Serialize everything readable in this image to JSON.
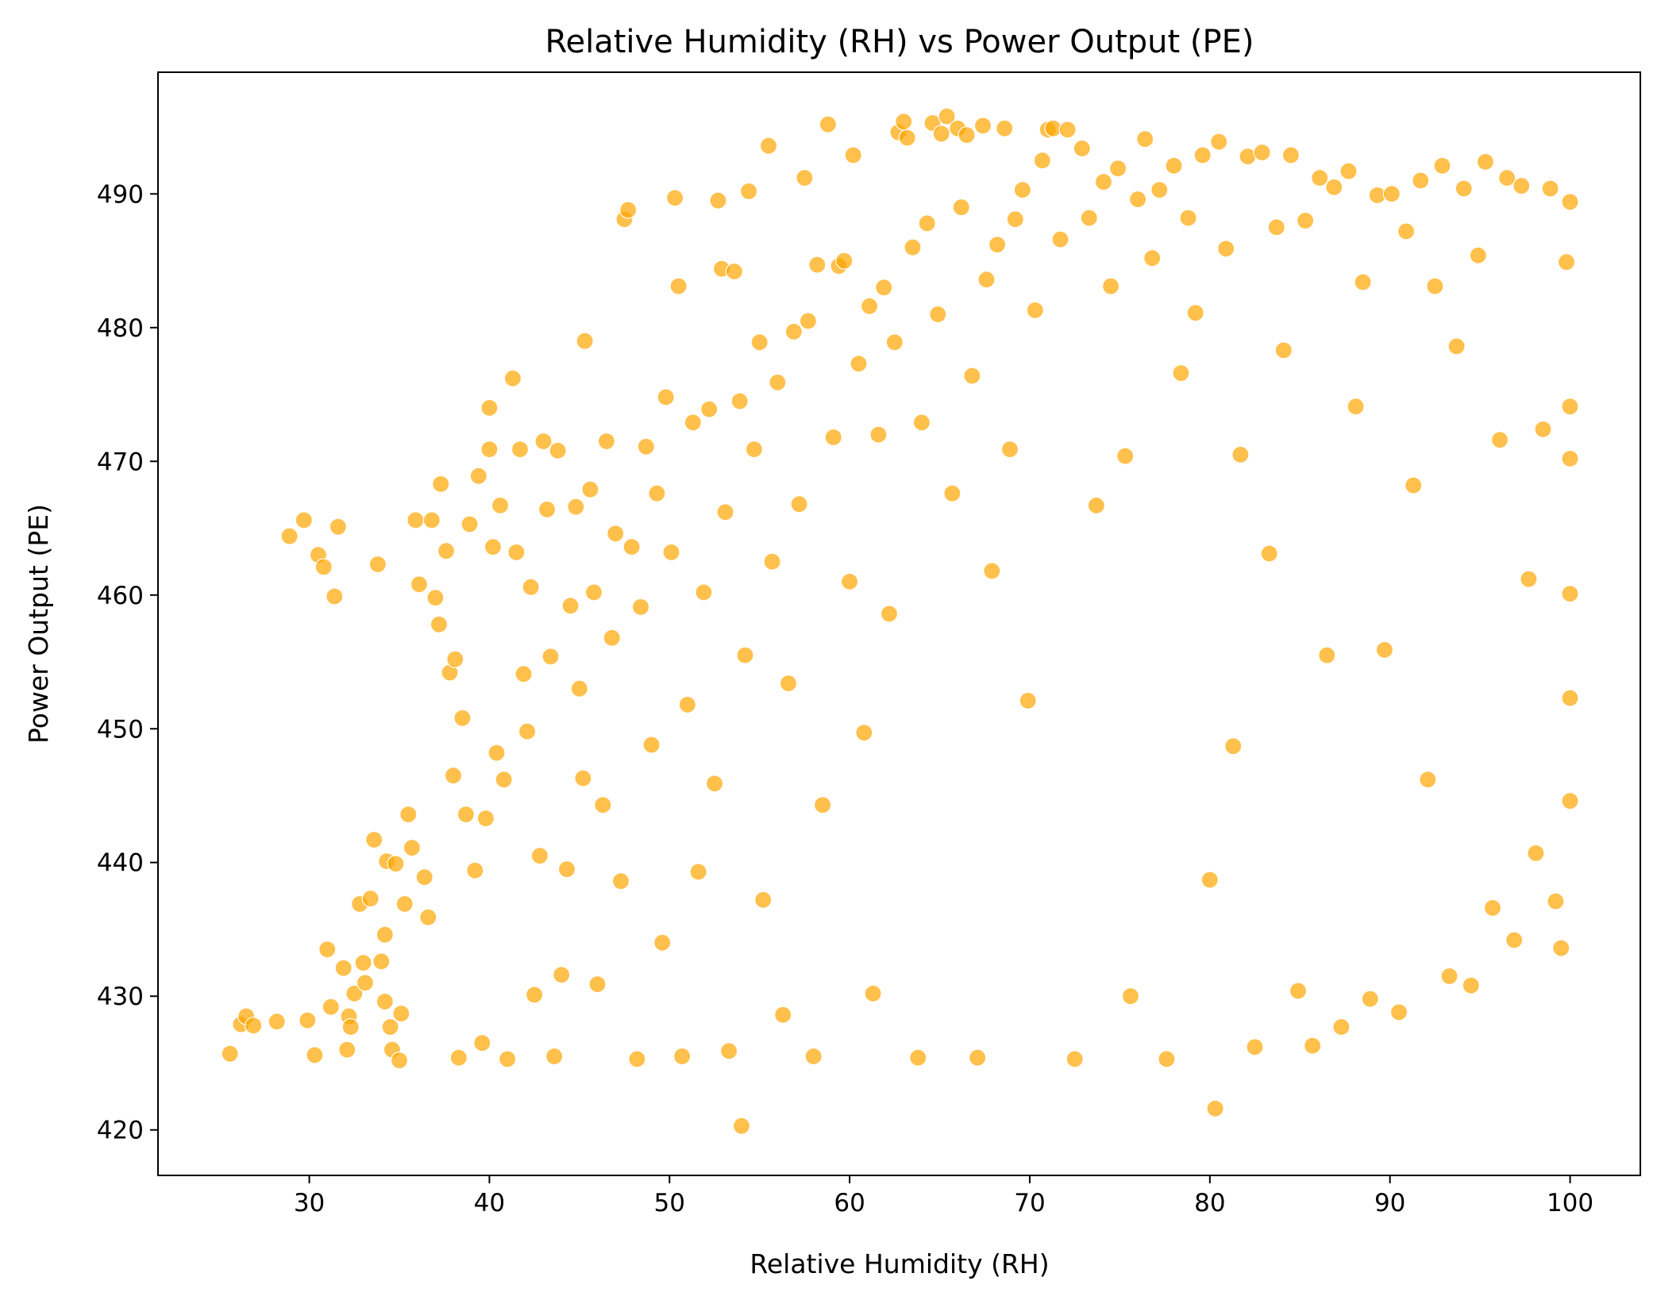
{
  "chart_data": {
    "type": "scatter",
    "title": "Relative Humidity (RH) vs Power Output (PE)",
    "xlabel": "Relative Humidity (RH)",
    "ylabel": "Power Output (PE)",
    "xlim": [
      21.6,
      103.9
    ],
    "ylim": [
      416.6,
      499.1
    ],
    "xticks": [
      30,
      40,
      50,
      60,
      70,
      80,
      90,
      100
    ],
    "yticks": [
      420,
      430,
      440,
      450,
      460,
      470,
      480,
      490
    ],
    "grid": false,
    "legend": "none",
    "marker_color": "#FFA500",
    "marker_alpha": 0.7,
    "marker_edge_color": "#ffffff",
    "series": [
      {
        "values_description": "",
        "points": [
          [
            25.6,
            425.7
          ],
          [
            26.2,
            427.9
          ],
          [
            26.5,
            428.5
          ],
          [
            26.9,
            427.8
          ],
          [
            28.2,
            428.1
          ],
          [
            28.9,
            464.4
          ],
          [
            29.7,
            465.6
          ],
          [
            29.9,
            428.2
          ],
          [
            30.3,
            425.6
          ],
          [
            30.5,
            463.0
          ],
          [
            30.8,
            462.1
          ],
          [
            31.0,
            433.5
          ],
          [
            31.2,
            429.2
          ],
          [
            31.4,
            459.9
          ],
          [
            31.6,
            465.1
          ],
          [
            31.9,
            432.1
          ],
          [
            32.1,
            426.0
          ],
          [
            32.2,
            428.5
          ],
          [
            32.3,
            427.7
          ],
          [
            32.5,
            430.2
          ],
          [
            32.8,
            436.9
          ],
          [
            33.0,
            432.5
          ],
          [
            33.1,
            431.0
          ],
          [
            33.4,
            437.3
          ],
          [
            33.6,
            441.7
          ],
          [
            33.8,
            462.3
          ],
          [
            34.0,
            432.6
          ],
          [
            34.2,
            434.6
          ],
          [
            34.2,
            429.6
          ],
          [
            34.3,
            440.1
          ],
          [
            34.5,
            427.7
          ],
          [
            34.6,
            426.0
          ],
          [
            34.8,
            439.9
          ],
          [
            35.0,
            425.2
          ],
          [
            35.1,
            428.7
          ],
          [
            35.3,
            436.9
          ],
          [
            35.5,
            443.6
          ],
          [
            35.7,
            441.1
          ],
          [
            35.9,
            465.6
          ],
          [
            36.1,
            460.8
          ],
          [
            36.4,
            438.9
          ],
          [
            36.6,
            435.9
          ],
          [
            36.8,
            465.6
          ],
          [
            37.0,
            459.8
          ],
          [
            37.2,
            457.8
          ],
          [
            37.3,
            468.3
          ],
          [
            37.6,
            463.3
          ],
          [
            37.8,
            454.2
          ],
          [
            38.0,
            446.5
          ],
          [
            38.1,
            455.2
          ],
          [
            38.3,
            425.4
          ],
          [
            38.5,
            450.8
          ],
          [
            38.7,
            443.6
          ],
          [
            38.9,
            465.3
          ],
          [
            39.2,
            439.4
          ],
          [
            39.4,
            468.9
          ],
          [
            39.6,
            426.5
          ],
          [
            39.8,
            443.3
          ],
          [
            40.0,
            474.0
          ],
          [
            40.0,
            470.9
          ],
          [
            40.2,
            463.6
          ],
          [
            40.4,
            448.2
          ],
          [
            40.6,
            466.7
          ],
          [
            40.8,
            446.2
          ],
          [
            41.0,
            425.3
          ],
          [
            41.3,
            476.2
          ],
          [
            41.5,
            463.2
          ],
          [
            41.7,
            470.9
          ],
          [
            41.9,
            454.1
          ],
          [
            42.1,
            449.8
          ],
          [
            42.3,
            460.6
          ],
          [
            42.5,
            430.1
          ],
          [
            42.8,
            440.5
          ],
          [
            43.0,
            471.5
          ],
          [
            43.2,
            466.4
          ],
          [
            43.4,
            455.4
          ],
          [
            43.6,
            425.5
          ],
          [
            43.8,
            470.8
          ],
          [
            44.0,
            431.6
          ],
          [
            44.3,
            439.5
          ],
          [
            44.5,
            459.2
          ],
          [
            44.8,
            466.6
          ],
          [
            45.0,
            453.0
          ],
          [
            45.2,
            446.3
          ],
          [
            45.3,
            479.0
          ],
          [
            45.6,
            467.9
          ],
          [
            45.8,
            460.2
          ],
          [
            46.0,
            430.9
          ],
          [
            46.3,
            444.3
          ],
          [
            46.5,
            471.5
          ],
          [
            46.8,
            456.8
          ],
          [
            47.0,
            464.6
          ],
          [
            47.3,
            438.6
          ],
          [
            47.5,
            488.1
          ],
          [
            47.7,
            488.8
          ],
          [
            47.9,
            463.6
          ],
          [
            48.2,
            425.3
          ],
          [
            48.4,
            459.1
          ],
          [
            48.7,
            471.1
          ],
          [
            49.0,
            448.8
          ],
          [
            49.3,
            467.6
          ],
          [
            49.6,
            434.0
          ],
          [
            49.8,
            474.8
          ],
          [
            50.1,
            463.2
          ],
          [
            50.3,
            489.7
          ],
          [
            50.5,
            483.1
          ],
          [
            50.7,
            425.5
          ],
          [
            51.0,
            451.8
          ],
          [
            51.3,
            472.9
          ],
          [
            51.6,
            439.3
          ],
          [
            51.9,
            460.2
          ],
          [
            52.2,
            473.9
          ],
          [
            52.5,
            445.9
          ],
          [
            52.7,
            489.5
          ],
          [
            52.9,
            484.4
          ],
          [
            53.1,
            466.2
          ],
          [
            53.3,
            425.9
          ],
          [
            53.6,
            484.2
          ],
          [
            53.9,
            474.5
          ],
          [
            54.0,
            420.3
          ],
          [
            54.2,
            455.5
          ],
          [
            54.4,
            490.2
          ],
          [
            54.7,
            470.9
          ],
          [
            55.0,
            478.9
          ],
          [
            55.2,
            437.2
          ],
          [
            55.5,
            493.6
          ],
          [
            55.7,
            462.5
          ],
          [
            56.0,
            475.9
          ],
          [
            56.3,
            428.6
          ],
          [
            56.6,
            453.4
          ],
          [
            56.9,
            479.7
          ],
          [
            57.2,
            466.8
          ],
          [
            57.5,
            491.2
          ],
          [
            57.7,
            480.5
          ],
          [
            58.0,
            425.5
          ],
          [
            58.2,
            484.7
          ],
          [
            58.5,
            444.3
          ],
          [
            58.8,
            495.2
          ],
          [
            59.1,
            471.8
          ],
          [
            59.4,
            484.6
          ],
          [
            59.7,
            485.0
          ],
          [
            60.0,
            461.0
          ],
          [
            60.2,
            492.9
          ],
          [
            60.5,
            477.3
          ],
          [
            60.8,
            449.7
          ],
          [
            61.1,
            481.6
          ],
          [
            61.3,
            430.2
          ],
          [
            61.6,
            472.0
          ],
          [
            61.9,
            483.0
          ],
          [
            62.2,
            458.6
          ],
          [
            62.5,
            478.9
          ],
          [
            62.7,
            494.6
          ],
          [
            63.0,
            495.4
          ],
          [
            63.2,
            494.2
          ],
          [
            63.5,
            486.0
          ],
          [
            63.8,
            425.4
          ],
          [
            64.0,
            472.9
          ],
          [
            64.3,
            487.8
          ],
          [
            64.6,
            495.3
          ],
          [
            64.9,
            481.0
          ],
          [
            65.1,
            494.5
          ],
          [
            65.4,
            495.8
          ],
          [
            65.7,
            467.6
          ],
          [
            66.0,
            494.9
          ],
          [
            66.2,
            489.0
          ],
          [
            66.5,
            494.4
          ],
          [
            66.8,
            476.4
          ],
          [
            67.1,
            425.4
          ],
          [
            67.4,
            495.1
          ],
          [
            67.6,
            483.6
          ],
          [
            67.9,
            461.8
          ],
          [
            68.2,
            486.2
          ],
          [
            68.6,
            494.9
          ],
          [
            68.9,
            470.9
          ],
          [
            69.2,
            488.1
          ],
          [
            69.6,
            490.3
          ],
          [
            69.9,
            452.1
          ],
          [
            70.3,
            481.3
          ],
          [
            70.7,
            492.5
          ],
          [
            71.0,
            494.8
          ],
          [
            71.3,
            494.9
          ],
          [
            71.7,
            486.6
          ],
          [
            72.1,
            494.8
          ],
          [
            72.5,
            425.3
          ],
          [
            72.9,
            493.4
          ],
          [
            73.3,
            488.2
          ],
          [
            73.7,
            466.7
          ],
          [
            74.1,
            490.9
          ],
          [
            74.5,
            483.1
          ],
          [
            74.9,
            491.9
          ],
          [
            75.3,
            470.4
          ],
          [
            75.6,
            430.0
          ],
          [
            76.0,
            489.6
          ],
          [
            76.4,
            494.1
          ],
          [
            76.8,
            485.2
          ],
          [
            77.2,
            490.3
          ],
          [
            77.6,
            425.3
          ],
          [
            78.0,
            492.1
          ],
          [
            78.4,
            476.6
          ],
          [
            78.8,
            488.2
          ],
          [
            79.2,
            481.1
          ],
          [
            79.6,
            492.9
          ],
          [
            80.0,
            438.7
          ],
          [
            80.3,
            421.6
          ],
          [
            80.5,
            493.9
          ],
          [
            80.9,
            485.9
          ],
          [
            81.3,
            448.7
          ],
          [
            81.7,
            470.5
          ],
          [
            82.1,
            492.8
          ],
          [
            82.5,
            426.2
          ],
          [
            82.9,
            493.1
          ],
          [
            83.3,
            463.1
          ],
          [
            83.7,
            487.5
          ],
          [
            84.1,
            478.3
          ],
          [
            84.5,
            492.9
          ],
          [
            84.9,
            430.4
          ],
          [
            85.3,
            488.0
          ],
          [
            85.7,
            426.3
          ],
          [
            86.1,
            491.2
          ],
          [
            86.5,
            455.5
          ],
          [
            86.9,
            490.5
          ],
          [
            87.3,
            427.7
          ],
          [
            87.7,
            491.7
          ],
          [
            88.1,
            474.1
          ],
          [
            88.5,
            483.4
          ],
          [
            88.9,
            429.8
          ],
          [
            89.3,
            489.9
          ],
          [
            89.7,
            455.9
          ],
          [
            90.1,
            490.0
          ],
          [
            90.5,
            428.8
          ],
          [
            90.9,
            487.2
          ],
          [
            91.3,
            468.2
          ],
          [
            91.7,
            491.0
          ],
          [
            92.1,
            446.2
          ],
          [
            92.5,
            483.1
          ],
          [
            92.9,
            492.1
          ],
          [
            93.3,
            431.5
          ],
          [
            93.7,
            478.6
          ],
          [
            94.1,
            490.4
          ],
          [
            94.5,
            430.8
          ],
          [
            94.9,
            485.4
          ],
          [
            95.3,
            492.4
          ],
          [
            95.7,
            436.6
          ],
          [
            96.1,
            471.6
          ],
          [
            96.5,
            491.2
          ],
          [
            96.9,
            434.2
          ],
          [
            97.3,
            490.6
          ],
          [
            97.7,
            461.2
          ],
          [
            98.1,
            440.7
          ],
          [
            98.5,
            472.4
          ],
          [
            98.9,
            490.4
          ],
          [
            99.2,
            437.1
          ],
          [
            99.5,
            433.6
          ],
          [
            99.8,
            484.9
          ],
          [
            100.0,
            489.4
          ],
          [
            100.0,
            470.2
          ],
          [
            100.0,
            460.1
          ],
          [
            100.0,
            452.3
          ],
          [
            100.0,
            444.6
          ],
          [
            100.0,
            474.1
          ]
        ]
      }
    ]
  }
}
